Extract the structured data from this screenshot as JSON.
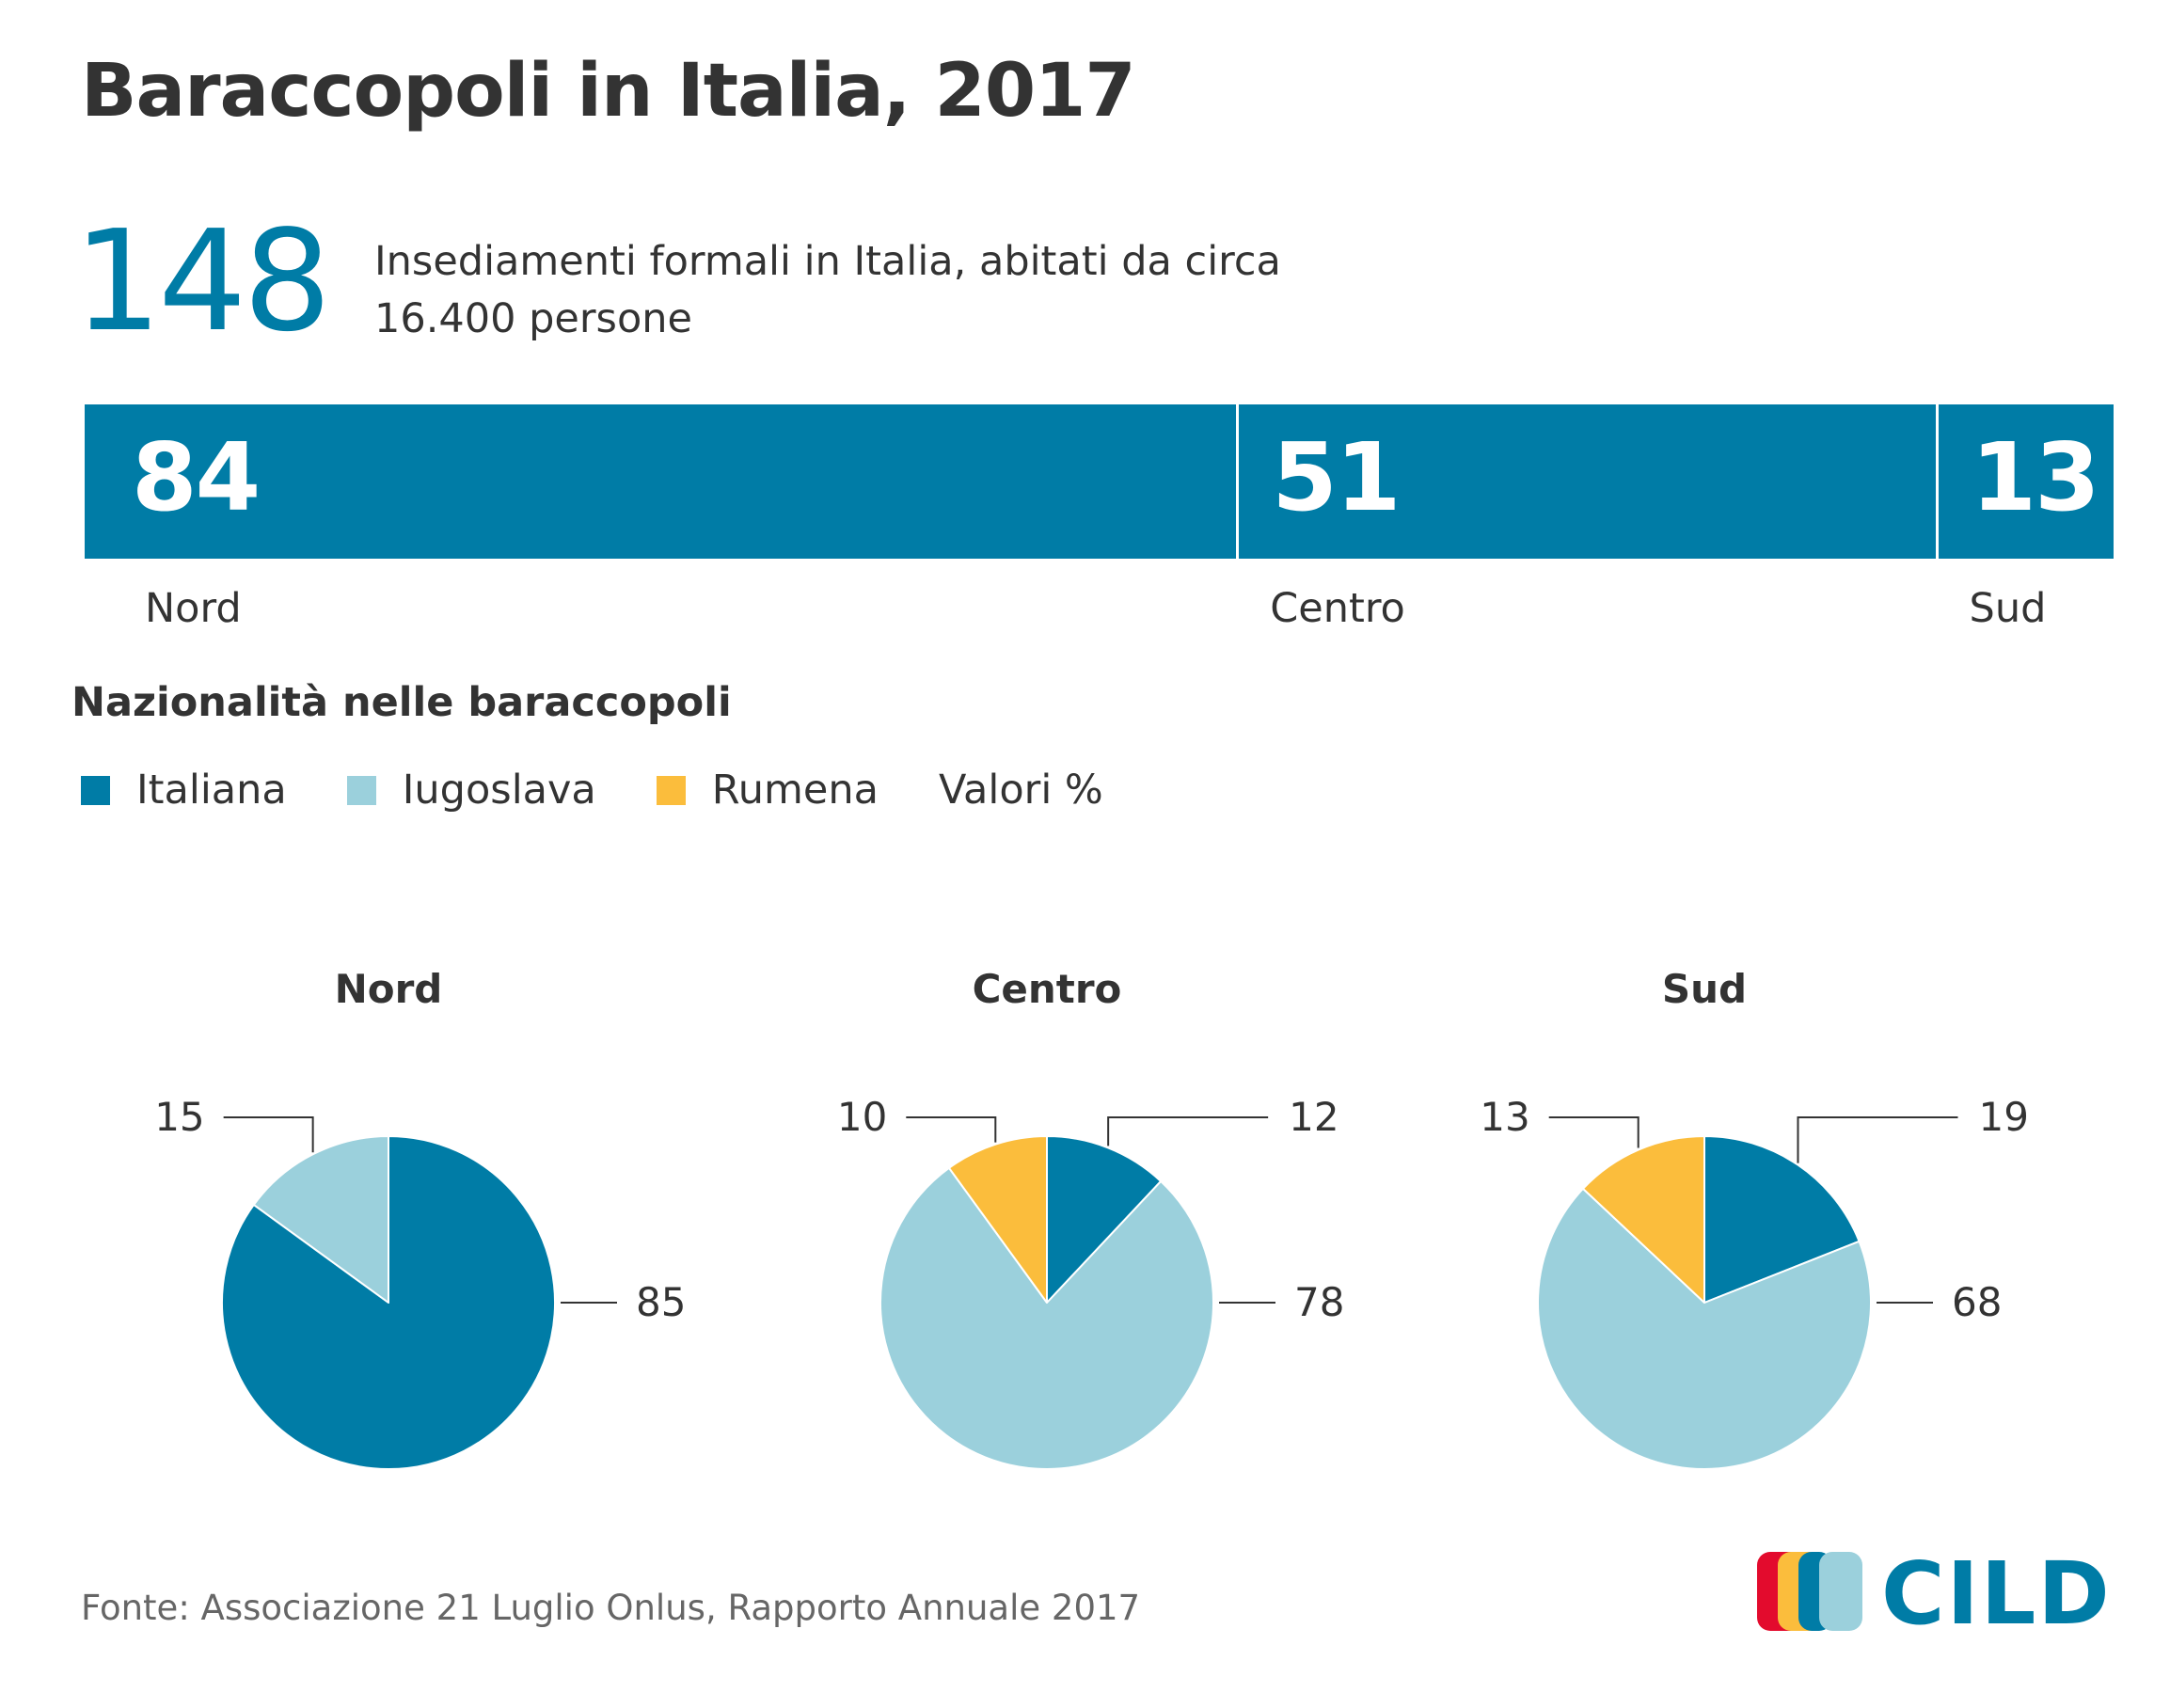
{
  "title": "Baraccopoli in Italia, 2017",
  "headline": {
    "value": "148",
    "description": "Insediamenti formali in Italia, abitati da circa 16.400 persone"
  },
  "regions_bar": {
    "color": "#007ca6",
    "segments": [
      {
        "label": "Nord",
        "value": 84
      },
      {
        "label": "Centro",
        "value": 51
      },
      {
        "label": "Sud",
        "value": 13
      }
    ]
  },
  "nationality": {
    "title": "Nazionalità nelle baraccopoli",
    "unit_note": "Valori %",
    "legend": [
      {
        "label": "Italiana",
        "color": "#007ca6"
      },
      {
        "label": "Iugoslava",
        "color": "#9bd0dc"
      },
      {
        "label": "Rumena",
        "color": "#fbbd3c"
      }
    ]
  },
  "chart_data": [
    {
      "type": "pie",
      "title": "Nord",
      "slices": [
        {
          "category": "Italiana",
          "value": 85,
          "color": "#007ca6"
        },
        {
          "category": "Iugoslava",
          "value": 15,
          "color": "#9bd0dc"
        }
      ]
    },
    {
      "type": "pie",
      "title": "Centro",
      "slices": [
        {
          "category": "Italiana",
          "value": 12,
          "color": "#007ca6"
        },
        {
          "category": "Iugoslava",
          "value": 78,
          "color": "#9bd0dc"
        },
        {
          "category": "Rumena",
          "value": 10,
          "color": "#fbbd3c"
        }
      ]
    },
    {
      "type": "pie",
      "title": "Sud",
      "slices": [
        {
          "category": "Italiana",
          "value": 19,
          "color": "#007ca6"
        },
        {
          "category": "Iugoslava",
          "value": 68,
          "color": "#9bd0dc"
        },
        {
          "category": "Rumena",
          "value": 13,
          "color": "#fbbd3c"
        }
      ]
    }
  ],
  "footer": {
    "source": "Fonte: Associazione 21 Luglio Onlus, Rapporto Annuale 2017"
  },
  "logo": {
    "text": "CILD",
    "colors": [
      "#e30b2d",
      "#fbbd3c",
      "#007ca6",
      "#9bd0dc"
    ]
  }
}
